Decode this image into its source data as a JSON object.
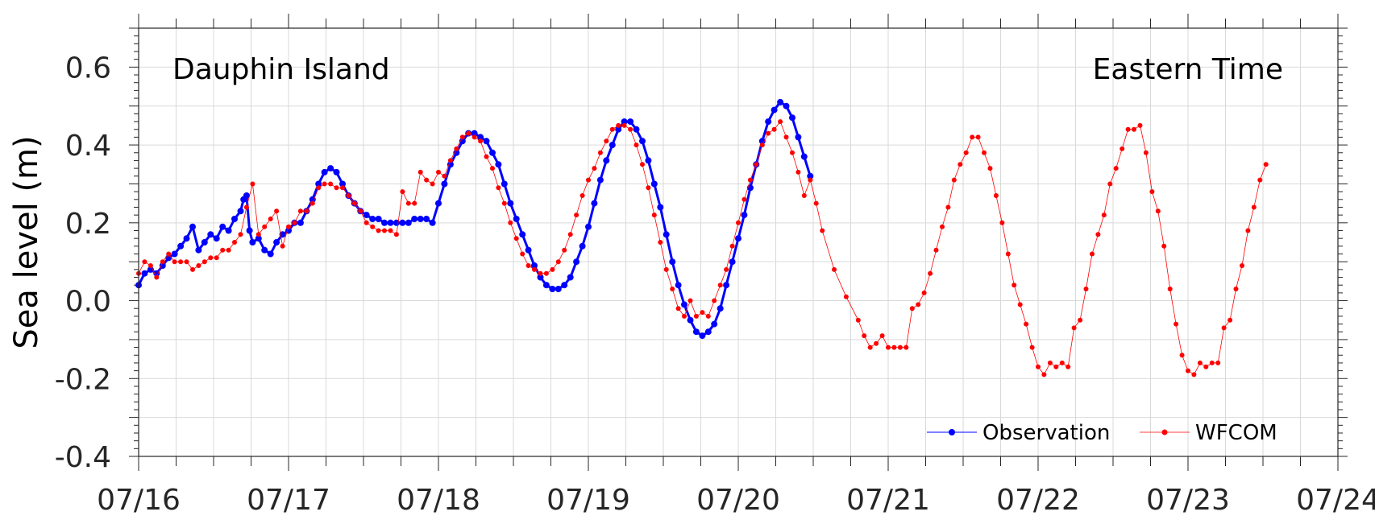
{
  "chart_data": {
    "type": "line",
    "location": "Dauphin Island",
    "time_zone": "Eastern Time",
    "ylabel": "Sea level (m)",
    "ylim": [
      -0.4,
      0.7
    ],
    "yticks": [
      -0.4,
      -0.2,
      0.0,
      0.2,
      0.4,
      0.6
    ],
    "ytick_labels": [
      "-0.4",
      "-0.2",
      "0.0",
      "0.2",
      "0.4",
      "0.6"
    ],
    "xlim": [
      "07/16 00:00",
      "07/24 00:00"
    ],
    "xtick_labels": [
      "07/16",
      "07/17",
      "07/18",
      "07/19",
      "07/20",
      "07/21",
      "07/22",
      "07/23",
      "07/24"
    ],
    "grid": true,
    "legend_position": "bottom-right",
    "series": [
      {
        "name": "Observation",
        "color": "#0000ff",
        "x_unit": "days after 07/16 00:00",
        "points": [
          [
            0.0,
            0.04
          ],
          [
            0.04,
            0.07
          ],
          [
            0.08,
            0.08
          ],
          [
            0.12,
            0.07
          ],
          [
            0.16,
            0.09
          ],
          [
            0.2,
            0.11
          ],
          [
            0.24,
            0.12
          ],
          [
            0.28,
            0.14
          ],
          [
            0.32,
            0.16
          ],
          [
            0.36,
            0.19
          ],
          [
            0.4,
            0.13
          ],
          [
            0.44,
            0.15
          ],
          [
            0.48,
            0.17
          ],
          [
            0.52,
            0.16
          ],
          [
            0.56,
            0.19
          ],
          [
            0.6,
            0.18
          ],
          [
            0.64,
            0.21
          ],
          [
            0.68,
            0.23
          ],
          [
            0.7,
            0.26
          ],
          [
            0.72,
            0.27
          ],
          [
            0.74,
            0.18
          ],
          [
            0.76,
            0.15
          ],
          [
            0.8,
            0.16
          ],
          [
            0.84,
            0.13
          ],
          [
            0.88,
            0.12
          ],
          [
            0.92,
            0.15
          ],
          [
            0.96,
            0.17
          ],
          [
            1.0,
            0.18
          ],
          [
            1.04,
            0.2
          ],
          [
            1.08,
            0.2
          ],
          [
            1.12,
            0.23
          ],
          [
            1.16,
            0.26
          ],
          [
            1.2,
            0.3
          ],
          [
            1.24,
            0.33
          ],
          [
            1.28,
            0.34
          ],
          [
            1.32,
            0.33
          ],
          [
            1.36,
            0.3
          ],
          [
            1.4,
            0.27
          ],
          [
            1.44,
            0.25
          ],
          [
            1.48,
            0.23
          ],
          [
            1.52,
            0.22
          ],
          [
            1.56,
            0.21
          ],
          [
            1.6,
            0.21
          ],
          [
            1.64,
            0.2
          ],
          [
            1.68,
            0.2
          ],
          [
            1.72,
            0.2
          ],
          [
            1.76,
            0.2
          ],
          [
            1.8,
            0.2
          ],
          [
            1.84,
            0.21
          ],
          [
            1.88,
            0.21
          ],
          [
            1.92,
            0.21
          ],
          [
            1.96,
            0.2
          ],
          [
            2.0,
            0.25
          ],
          [
            2.04,
            0.3
          ],
          [
            2.08,
            0.35
          ],
          [
            2.12,
            0.38
          ],
          [
            2.16,
            0.41
          ],
          [
            2.2,
            0.43
          ],
          [
            2.24,
            0.43
          ],
          [
            2.28,
            0.42
          ],
          [
            2.32,
            0.41
          ],
          [
            2.36,
            0.38
          ],
          [
            2.4,
            0.35
          ],
          [
            2.44,
            0.3
          ],
          [
            2.48,
            0.25
          ],
          [
            2.52,
            0.21
          ],
          [
            2.56,
            0.17
          ],
          [
            2.6,
            0.13
          ],
          [
            2.64,
            0.09
          ],
          [
            2.68,
            0.06
          ],
          [
            2.72,
            0.04
          ],
          [
            2.76,
            0.03
          ],
          [
            2.8,
            0.03
          ],
          [
            2.84,
            0.04
          ],
          [
            2.88,
            0.06
          ],
          [
            2.92,
            0.1
          ],
          [
            2.96,
            0.14
          ],
          [
            3.0,
            0.19
          ],
          [
            3.04,
            0.25
          ],
          [
            3.08,
            0.31
          ],
          [
            3.12,
            0.36
          ],
          [
            3.16,
            0.4
          ],
          [
            3.2,
            0.44
          ],
          [
            3.24,
            0.46
          ],
          [
            3.28,
            0.46
          ],
          [
            3.32,
            0.44
          ],
          [
            3.36,
            0.41
          ],
          [
            3.4,
            0.36
          ],
          [
            3.44,
            0.3
          ],
          [
            3.48,
            0.24
          ],
          [
            3.52,
            0.17
          ],
          [
            3.56,
            0.1
          ],
          [
            3.6,
            0.04
          ],
          [
            3.64,
            -0.01
          ],
          [
            3.68,
            -0.05
          ],
          [
            3.72,
            -0.08
          ],
          [
            3.76,
            -0.09
          ],
          [
            3.8,
            -0.08
          ],
          [
            3.84,
            -0.06
          ],
          [
            3.88,
            -0.02
          ],
          [
            3.92,
            0.04
          ],
          [
            3.96,
            0.1
          ],
          [
            4.0,
            0.16
          ],
          [
            4.04,
            0.22
          ],
          [
            4.08,
            0.29
          ],
          [
            4.12,
            0.35
          ],
          [
            4.16,
            0.41
          ],
          [
            4.2,
            0.46
          ],
          [
            4.24,
            0.49
          ],
          [
            4.28,
            0.51
          ],
          [
            4.32,
            0.5
          ],
          [
            4.36,
            0.47
          ],
          [
            4.4,
            0.42
          ],
          [
            4.44,
            0.37
          ],
          [
            4.48,
            0.32
          ]
        ]
      },
      {
        "name": "WFCOM",
        "color": "#ff0000",
        "x_unit": "days after 07/16 00:00",
        "points": [
          [
            0.0,
            0.07
          ],
          [
            0.04,
            0.1
          ],
          [
            0.08,
            0.09
          ],
          [
            0.12,
            0.06
          ],
          [
            0.16,
            0.1
          ],
          [
            0.2,
            0.12
          ],
          [
            0.24,
            0.1
          ],
          [
            0.28,
            0.1
          ],
          [
            0.32,
            0.1
          ],
          [
            0.36,
            0.08
          ],
          [
            0.4,
            0.09
          ],
          [
            0.44,
            0.1
          ],
          [
            0.48,
            0.11
          ],
          [
            0.52,
            0.11
          ],
          [
            0.56,
            0.13
          ],
          [
            0.6,
            0.13
          ],
          [
            0.64,
            0.15
          ],
          [
            0.68,
            0.17
          ],
          [
            0.72,
            0.24
          ],
          [
            0.76,
            0.3
          ],
          [
            0.8,
            0.17
          ],
          [
            0.84,
            0.19
          ],
          [
            0.88,
            0.21
          ],
          [
            0.92,
            0.23
          ],
          [
            0.96,
            0.14
          ],
          [
            1.0,
            0.19
          ],
          [
            1.04,
            0.2
          ],
          [
            1.08,
            0.23
          ],
          [
            1.12,
            0.23
          ],
          [
            1.16,
            0.25
          ],
          [
            1.2,
            0.29
          ],
          [
            1.24,
            0.3
          ],
          [
            1.28,
            0.3
          ],
          [
            1.32,
            0.29
          ],
          [
            1.36,
            0.29
          ],
          [
            1.4,
            0.27
          ],
          [
            1.44,
            0.25
          ],
          [
            1.48,
            0.23
          ],
          [
            1.52,
            0.2
          ],
          [
            1.56,
            0.19
          ],
          [
            1.6,
            0.18
          ],
          [
            1.64,
            0.18
          ],
          [
            1.68,
            0.18
          ],
          [
            1.72,
            0.17
          ],
          [
            1.76,
            0.28
          ],
          [
            1.8,
            0.25
          ],
          [
            1.84,
            0.25
          ],
          [
            1.88,
            0.33
          ],
          [
            1.92,
            0.31
          ],
          [
            1.96,
            0.3
          ],
          [
            2.0,
            0.33
          ],
          [
            2.04,
            0.32
          ],
          [
            2.08,
            0.36
          ],
          [
            2.12,
            0.39
          ],
          [
            2.16,
            0.42
          ],
          [
            2.2,
            0.43
          ],
          [
            2.24,
            0.42
          ],
          [
            2.28,
            0.41
          ],
          [
            2.32,
            0.37
          ],
          [
            2.36,
            0.34
          ],
          [
            2.4,
            0.29
          ],
          [
            2.44,
            0.25
          ],
          [
            2.48,
            0.2
          ],
          [
            2.52,
            0.16
          ],
          [
            2.56,
            0.12
          ],
          [
            2.6,
            0.09
          ],
          [
            2.64,
            0.08
          ],
          [
            2.68,
            0.07
          ],
          [
            2.72,
            0.07
          ],
          [
            2.76,
            0.08
          ],
          [
            2.8,
            0.1
          ],
          [
            2.84,
            0.13
          ],
          [
            2.88,
            0.17
          ],
          [
            2.92,
            0.22
          ],
          [
            2.96,
            0.27
          ],
          [
            3.0,
            0.31
          ],
          [
            3.04,
            0.34
          ],
          [
            3.08,
            0.38
          ],
          [
            3.12,
            0.41
          ],
          [
            3.16,
            0.44
          ],
          [
            3.2,
            0.45
          ],
          [
            3.24,
            0.45
          ],
          [
            3.28,
            0.44
          ],
          [
            3.32,
            0.4
          ],
          [
            3.36,
            0.35
          ],
          [
            3.4,
            0.29
          ],
          [
            3.44,
            0.22
          ],
          [
            3.48,
            0.15
          ],
          [
            3.52,
            0.08
          ],
          [
            3.56,
            0.03
          ],
          [
            3.6,
            -0.02
          ],
          [
            3.64,
            -0.04
          ],
          [
            3.68,
            -0.0
          ],
          [
            3.72,
            -0.04
          ],
          [
            3.76,
            -0.03
          ],
          [
            3.8,
            -0.04
          ],
          [
            3.84,
            0.0
          ],
          [
            3.88,
            0.04
          ],
          [
            3.92,
            0.08
          ],
          [
            3.96,
            0.14
          ],
          [
            4.0,
            0.2
          ],
          [
            4.04,
            0.26
          ],
          [
            4.08,
            0.31
          ],
          [
            4.12,
            0.35
          ],
          [
            4.16,
            0.4
          ],
          [
            4.2,
            0.43
          ],
          [
            4.24,
            0.44
          ],
          [
            4.28,
            0.46
          ],
          [
            4.32,
            0.42
          ],
          [
            4.36,
            0.38
          ],
          [
            4.4,
            0.33
          ],
          [
            4.44,
            0.27
          ],
          [
            4.48,
            0.31
          ],
          [
            4.52,
            0.25
          ],
          [
            4.56,
            0.18
          ],
          [
            4.64,
            0.08
          ],
          [
            4.72,
            0.01
          ],
          [
            4.8,
            -0.05
          ],
          [
            4.84,
            -0.09
          ],
          [
            4.88,
            -0.12
          ],
          [
            4.92,
            -0.11
          ],
          [
            4.96,
            -0.09
          ],
          [
            5.0,
            -0.12
          ],
          [
            5.04,
            -0.12
          ],
          [
            5.08,
            -0.12
          ],
          [
            5.12,
            -0.12
          ],
          [
            5.16,
            -0.02
          ],
          [
            5.2,
            -0.01
          ],
          [
            5.24,
            0.02
          ],
          [
            5.28,
            0.07
          ],
          [
            5.32,
            0.13
          ],
          [
            5.36,
            0.19
          ],
          [
            5.4,
            0.24
          ],
          [
            5.44,
            0.31
          ],
          [
            5.48,
            0.35
          ],
          [
            5.52,
            0.38
          ],
          [
            5.56,
            0.42
          ],
          [
            5.6,
            0.42
          ],
          [
            5.64,
            0.38
          ],
          [
            5.68,
            0.34
          ],
          [
            5.72,
            0.27
          ],
          [
            5.76,
            0.2
          ],
          [
            5.8,
            0.12
          ],
          [
            5.84,
            0.04
          ],
          [
            5.88,
            -0.01
          ],
          [
            5.92,
            -0.06
          ],
          [
            5.96,
            -0.12
          ],
          [
            6.0,
            -0.17
          ],
          [
            6.04,
            -0.19
          ],
          [
            6.08,
            -0.16
          ],
          [
            6.12,
            -0.17
          ],
          [
            6.16,
            -0.16
          ],
          [
            6.2,
            -0.17
          ],
          [
            6.24,
            -0.07
          ],
          [
            6.28,
            -0.05
          ],
          [
            6.32,
            0.03
          ],
          [
            6.36,
            0.12
          ],
          [
            6.4,
            0.17
          ],
          [
            6.44,
            0.22
          ],
          [
            6.48,
            0.3
          ],
          [
            6.52,
            0.34
          ],
          [
            6.56,
            0.39
          ],
          [
            6.6,
            0.44
          ],
          [
            6.64,
            0.44
          ],
          [
            6.68,
            0.45
          ],
          [
            6.72,
            0.38
          ],
          [
            6.76,
            0.28
          ],
          [
            6.8,
            0.23
          ],
          [
            6.84,
            0.14
          ],
          [
            6.88,
            0.03
          ],
          [
            6.92,
            -0.06
          ],
          [
            6.96,
            -0.14
          ],
          [
            7.0,
            -0.18
          ],
          [
            7.04,
            -0.19
          ],
          [
            7.08,
            -0.16
          ],
          [
            7.12,
            -0.17
          ],
          [
            7.16,
            -0.16
          ],
          [
            7.2,
            -0.16
          ],
          [
            7.24,
            -0.07
          ],
          [
            7.28,
            -0.05
          ],
          [
            7.32,
            0.03
          ],
          [
            7.36,
            0.09
          ],
          [
            7.4,
            0.18
          ],
          [
            7.44,
            0.24
          ],
          [
            7.48,
            0.31
          ],
          [
            7.52,
            0.35
          ]
        ]
      }
    ]
  }
}
